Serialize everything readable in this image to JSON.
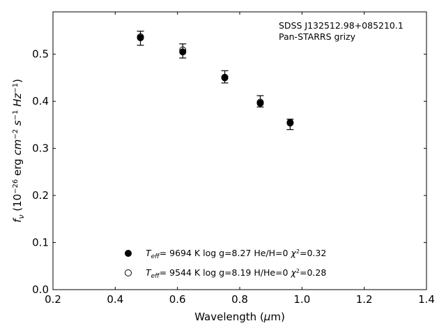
{
  "chart_data": {
    "type": "scatter",
    "annotation": {
      "line1": "SDSS J132512.98+085210.1",
      "line2": "Pan-STARRS grizy"
    },
    "xlabel": {
      "pre": "Wavelength (",
      "mu": "μ",
      "post": "m)"
    },
    "ylabel": "f_ν (10^−26 erg cm^−2 s^−1 Hz^−1)",
    "xlim": [
      0.2,
      1.4
    ],
    "ylim": [
      0.0,
      0.59
    ],
    "xticks": [
      0.2,
      0.4,
      0.6,
      0.8,
      1.0,
      1.2,
      1.4
    ],
    "yticks": [
      0.0,
      0.1,
      0.2,
      0.3,
      0.4,
      0.5
    ],
    "xtick_labels": [
      "0.2",
      "0.4",
      "0.6",
      "0.8",
      "1.0",
      "1.2",
      "1.4"
    ],
    "ytick_labels": [
      "0.0",
      "0.1",
      "0.2",
      "0.3",
      "0.4",
      "0.5"
    ],
    "grid": false,
    "legend_position": "lower-center",
    "observed": {
      "x": [
        0.481,
        0.617,
        0.752,
        0.866,
        0.962
      ],
      "y": [
        0.534,
        0.507,
        0.452,
        0.4,
        0.351
      ],
      "yerr": [
        0.015,
        0.015,
        0.013,
        0.012,
        0.011
      ]
    },
    "series": [
      {
        "name": "Teff= 9694 K log g=8.27 He/H=0 χ2=0.32",
        "marker": "filled-circle",
        "teff_label": "9694 K",
        "params": "log g=8.27  He/H=0",
        "chi2_value": "=0.32",
        "x": [
          0.481,
          0.617,
          0.752,
          0.866,
          0.962
        ],
        "y": [
          0.535,
          0.505,
          0.45,
          0.396,
          0.355
        ]
      },
      {
        "name": "Teff= 9544 K log g=8.19 H/He=0 χ2=0.28",
        "marker": "open-circle",
        "teff_label": "9544 K",
        "params": "log g=8.19  H/He=0",
        "chi2_value": "=0.28",
        "x": [
          0.481,
          0.617,
          0.752,
          0.866,
          0.962
        ],
        "y": [
          0.537,
          0.509,
          0.451,
          0.398,
          0.354
        ]
      }
    ]
  }
}
